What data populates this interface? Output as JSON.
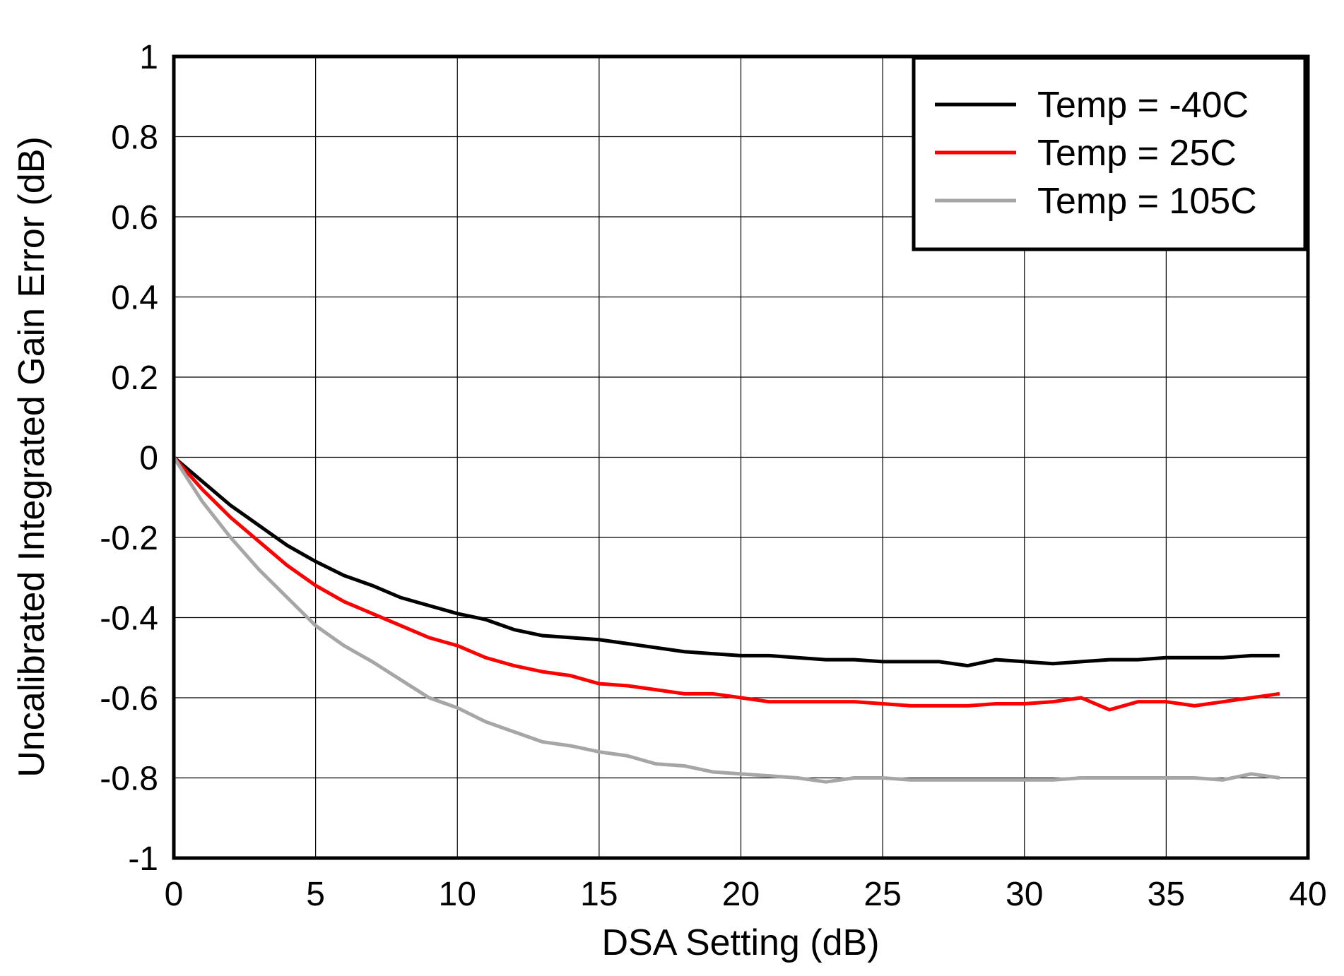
{
  "chart_data": {
    "type": "line",
    "x_label": "DSA Setting (dB)",
    "y_label": "Uncalibrated Integrated Gain Error (dB)",
    "x": [
      0,
      1,
      2,
      3,
      4,
      5,
      6,
      7,
      8,
      9,
      10,
      11,
      12,
      13,
      14,
      15,
      16,
      17,
      18,
      19,
      20,
      21,
      22,
      23,
      24,
      25,
      26,
      27,
      28,
      29,
      30,
      31,
      32,
      33,
      34,
      35,
      36,
      37,
      38,
      39
    ],
    "series": [
      {
        "name": "Temp = -40C",
        "color": "#000000",
        "values": [
          0,
          -0.06,
          -0.12,
          -0.17,
          -0.22,
          -0.26,
          -0.295,
          -0.32,
          -0.35,
          -0.37,
          -0.39,
          -0.405,
          -0.43,
          -0.445,
          -0.45,
          -0.455,
          -0.465,
          -0.475,
          -0.485,
          -0.49,
          -0.495,
          -0.495,
          -0.5,
          -0.505,
          -0.505,
          -0.51,
          -0.51,
          -0.51,
          -0.52,
          -0.505,
          -0.51,
          -0.515,
          -0.51,
          -0.505,
          -0.505,
          -0.5,
          -0.5,
          -0.5,
          -0.495,
          -0.495
        ]
      },
      {
        "name": "Temp = 25C",
        "color": "#ff0000",
        "values": [
          0,
          -0.08,
          -0.15,
          -0.21,
          -0.27,
          -0.32,
          -0.36,
          -0.39,
          -0.42,
          -0.45,
          -0.47,
          -0.5,
          -0.52,
          -0.535,
          -0.545,
          -0.565,
          -0.57,
          -0.58,
          -0.59,
          -0.59,
          -0.6,
          -0.61,
          -0.61,
          -0.61,
          -0.61,
          -0.615,
          -0.62,
          -0.62,
          -0.62,
          -0.615,
          -0.615,
          -0.61,
          -0.6,
          -0.63,
          -0.61,
          -0.61,
          -0.62,
          -0.61,
          -0.6,
          -0.59
        ]
      },
      {
        "name": "Temp = 105C",
        "color": "#a6a6a6",
        "values": [
          0,
          -0.11,
          -0.2,
          -0.28,
          -0.35,
          -0.42,
          -0.47,
          -0.51,
          -0.555,
          -0.6,
          -0.625,
          -0.66,
          -0.685,
          -0.71,
          -0.72,
          -0.735,
          -0.745,
          -0.765,
          -0.77,
          -0.785,
          -0.79,
          -0.795,
          -0.8,
          -0.81,
          -0.8,
          -0.8,
          -0.805,
          -0.805,
          -0.805,
          -0.805,
          -0.805,
          -0.805,
          -0.8,
          -0.8,
          -0.8,
          -0.8,
          -0.8,
          -0.805,
          -0.79,
          -0.8
        ]
      }
    ],
    "xlim": [
      0,
      40
    ],
    "xticks": [
      0,
      5,
      10,
      15,
      20,
      25,
      30,
      35,
      40
    ],
    "ylim": [
      -1,
      1
    ],
    "yticks": [
      -1,
      -0.8,
      -0.6,
      -0.4,
      -0.2,
      0,
      0.2,
      0.4,
      0.6,
      0.8,
      1
    ],
    "grid": true,
    "legend_position": "upper right"
  }
}
